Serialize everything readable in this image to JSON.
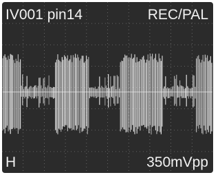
{
  "header": {
    "left": "IV001 pin14",
    "right": "REC/PAL"
  },
  "footer": {
    "left": "H",
    "right": "350mVpp"
  }
}
